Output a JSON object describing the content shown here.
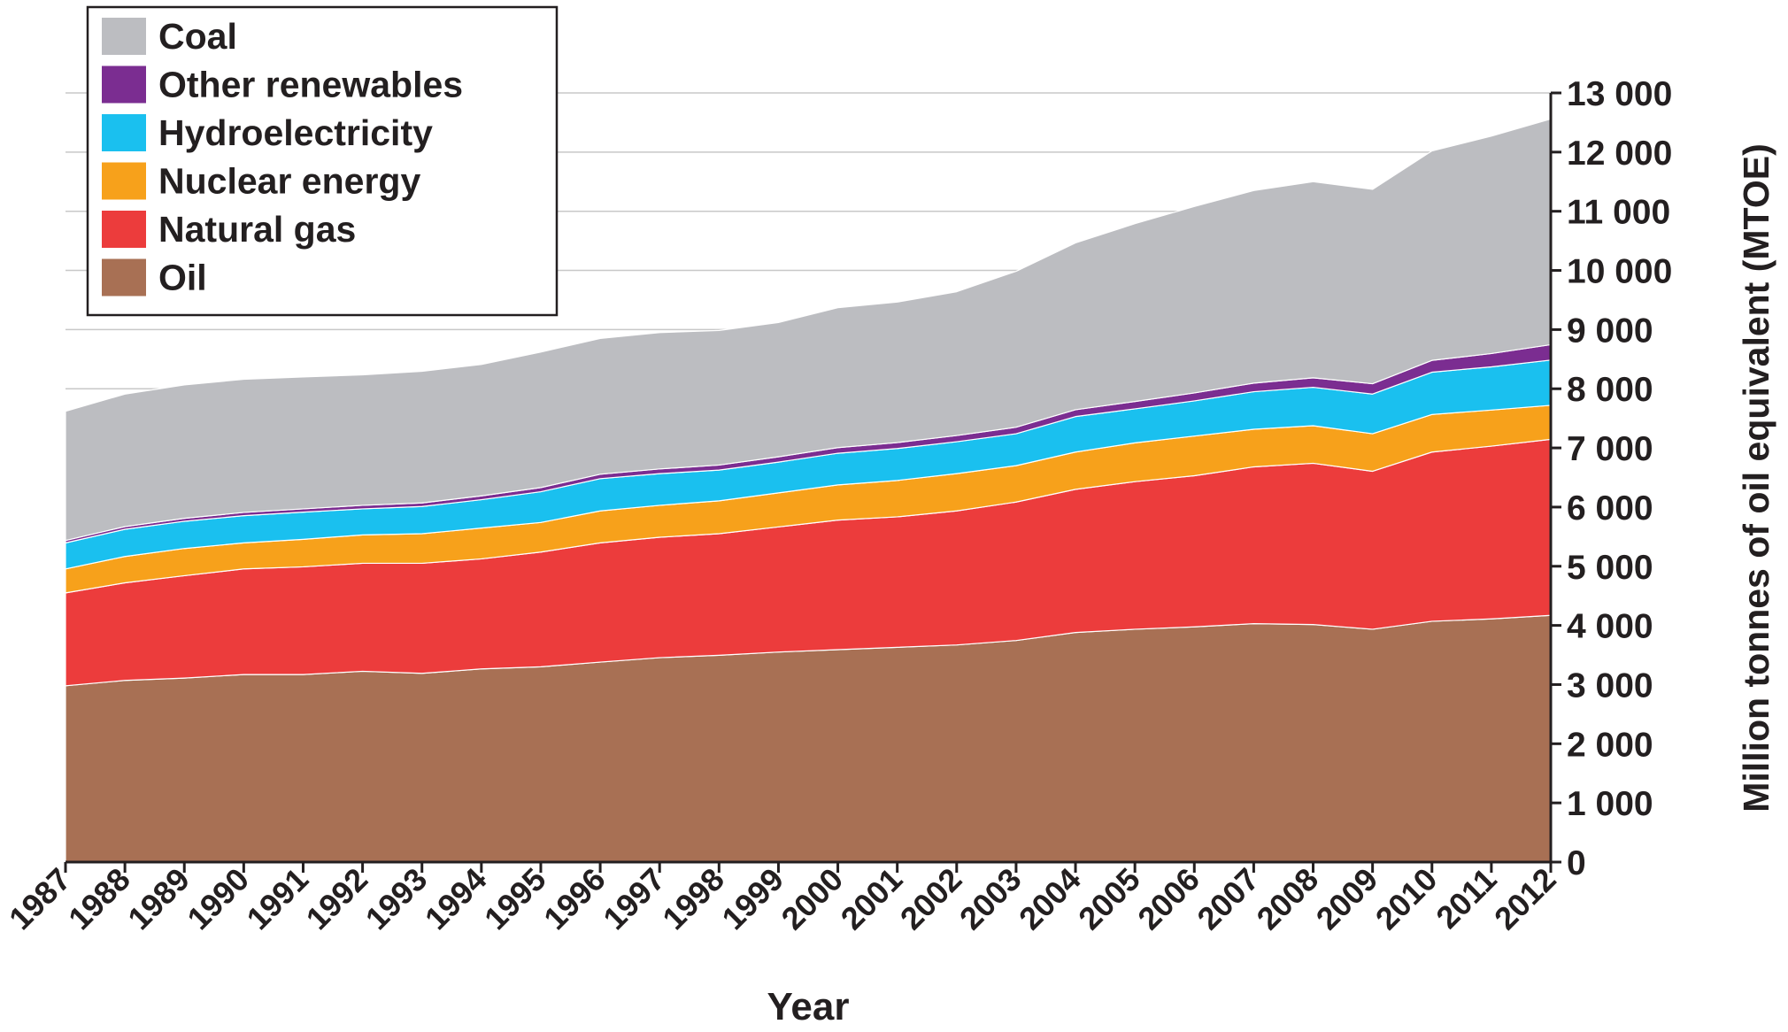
{
  "chart_data": {
    "type": "stacked_area",
    "x_label": "Year",
    "y_label": "Million tonnes of oil equivalent (MTOE)",
    "categories": [
      "1987",
      "1988",
      "1989",
      "1990",
      "1991",
      "1992",
      "1993",
      "1994",
      "1995",
      "1996",
      "1997",
      "1998",
      "1999",
      "2000",
      "2001",
      "2002",
      "2003",
      "2004",
      "2005",
      "2006",
      "2007",
      "2008",
      "2009",
      "2010",
      "2011",
      "2012"
    ],
    "series": [
      {
        "name": "Oil",
        "color": "#a87054",
        "values": [
          2980,
          3070,
          3110,
          3170,
          3170,
          3225,
          3190,
          3265,
          3300,
          3380,
          3455,
          3495,
          3550,
          3590,
          3630,
          3670,
          3745,
          3880,
          3935,
          3975,
          4030,
          4015,
          3935,
          4070,
          4110,
          4170
        ]
      },
      {
        "name": "Natural gas",
        "color": "#ec3c3c",
        "values": [
          1570,
          1650,
          1730,
          1785,
          1820,
          1825,
          1860,
          1860,
          1940,
          2015,
          2035,
          2055,
          2115,
          2190,
          2205,
          2265,
          2340,
          2420,
          2495,
          2555,
          2650,
          2725,
          2670,
          2860,
          2920,
          2975
        ]
      },
      {
        "name": "Nuclear energy",
        "color": "#f7a11b",
        "values": [
          405,
          445,
          460,
          440,
          465,
          480,
          500,
          520,
          500,
          540,
          540,
          555,
          575,
          595,
          615,
          630,
          615,
          630,
          655,
          670,
          635,
          635,
          635,
          635,
          610,
          575
        ]
      },
      {
        "name": "Hydroelectricity",
        "color": "#1ac0ef",
        "values": [
          440,
          460,
          460,
          460,
          460,
          440,
          460,
          480,
          520,
          545,
          535,
          520,
          520,
          535,
          540,
          540,
          540,
          600,
          575,
          595,
          635,
          650,
          670,
          715,
          730,
          765
        ]
      },
      {
        "name": "Other renewables",
        "color": "#7b2d91",
        "values": [
          40,
          45,
          50,
          55,
          55,
          60,
          60,
          65,
          70,
          75,
          80,
          85,
          90,
          95,
          100,
          105,
          110,
          115,
          125,
          135,
          145,
          160,
          175,
          200,
          225,
          260
        ]
      },
      {
        "name": "Coal",
        "color": "#bcbdc1",
        "values": [
          2185,
          2240,
          2255,
          2250,
          2230,
          2205,
          2225,
          2220,
          2290,
          2295,
          2305,
          2275,
          2270,
          2365,
          2375,
          2430,
          2635,
          2820,
          3005,
          3150,
          3255,
          3315,
          3285,
          3540,
          3675,
          3815
        ]
      }
    ],
    "ylim": [
      0,
      13000
    ],
    "yticks": [
      0,
      {
        "value": 1000,
        "label": "1 000"
      },
      {
        "value": 2000,
        "label": "2 000"
      },
      {
        "value": 3000,
        "label": "3 000"
      },
      {
        "value": 4000,
        "label": "4 000"
      },
      {
        "value": 5000,
        "label": "5 000"
      },
      {
        "value": 6000,
        "label": "6 000"
      },
      {
        "value": 7000,
        "label": "7 000"
      },
      {
        "value": 8000,
        "label": "8 000"
      },
      {
        "value": 9000,
        "label": "9 000"
      },
      {
        "value": 10000,
        "label": "10 000"
      },
      {
        "value": 11000,
        "label": "11 000"
      },
      {
        "value": 12000,
        "label": "12 000"
      },
      {
        "value": 13000,
        "label": "13 000"
      }
    ],
    "y_axis_side": "right",
    "grid": true,
    "legend_position": "upper left"
  }
}
